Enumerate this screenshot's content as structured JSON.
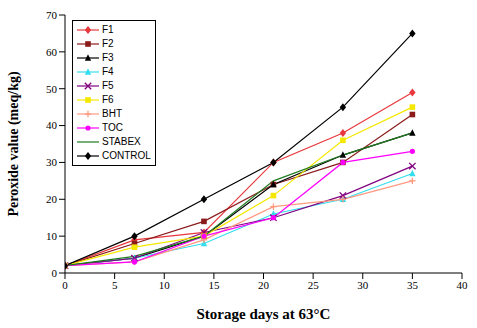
{
  "chart_data": {
    "type": "line",
    "x_label": "Storage days at 63°C",
    "y_label": "Peroxide value (meq/kg)",
    "x": [
      0,
      7,
      14,
      21,
      28,
      35
    ],
    "xlim": [
      0,
      40
    ],
    "xticks": [
      0,
      5,
      10,
      15,
      20,
      25,
      30,
      35,
      40
    ],
    "ylim": [
      0,
      70
    ],
    "yticks": [
      0,
      10,
      20,
      30,
      40,
      50,
      60,
      70
    ],
    "grid": false,
    "legend": "upper left",
    "series": [
      {
        "name": "F1",
        "color": "#e8383d",
        "marker": "diamond",
        "values": [
          2,
          9,
          11,
          30,
          38,
          49
        ]
      },
      {
        "name": "F2",
        "color": "#8b1a1a",
        "marker": "square",
        "values": [
          2,
          8,
          14,
          24,
          30,
          43
        ]
      },
      {
        "name": "F3",
        "color": "#000000",
        "marker": "triangle",
        "values": [
          2,
          4,
          10,
          24,
          32,
          38
        ]
      },
      {
        "name": "F4",
        "color": "#33ddee",
        "marker": "triangle",
        "values": [
          2,
          4,
          8,
          16,
          20,
          27
        ]
      },
      {
        "name": "F5",
        "color": "#800080",
        "marker": "x",
        "values": [
          2,
          4,
          11,
          15,
          21,
          29
        ]
      },
      {
        "name": "F6",
        "color": "#f5e800",
        "marker": "square",
        "values": [
          2,
          7,
          10,
          21,
          36,
          45
        ]
      },
      {
        "name": "BHT",
        "color": "#ff9980",
        "marker": "plus",
        "values": [
          2,
          3,
          9,
          18,
          20,
          25
        ]
      },
      {
        "name": "TOC",
        "color": "#ff00ff",
        "marker": "circle",
        "values": [
          2,
          3,
          10,
          15,
          30,
          33
        ]
      },
      {
        "name": "STABEX",
        "color": "#1e7a1e",
        "marker": "none",
        "values": [
          2,
          4.5,
          10,
          25,
          32,
          38
        ]
      },
      {
        "name": "CONTROL",
        "color": "#000000",
        "marker": "diamond",
        "values": [
          2,
          10,
          20,
          30,
          45,
          65
        ]
      }
    ]
  }
}
